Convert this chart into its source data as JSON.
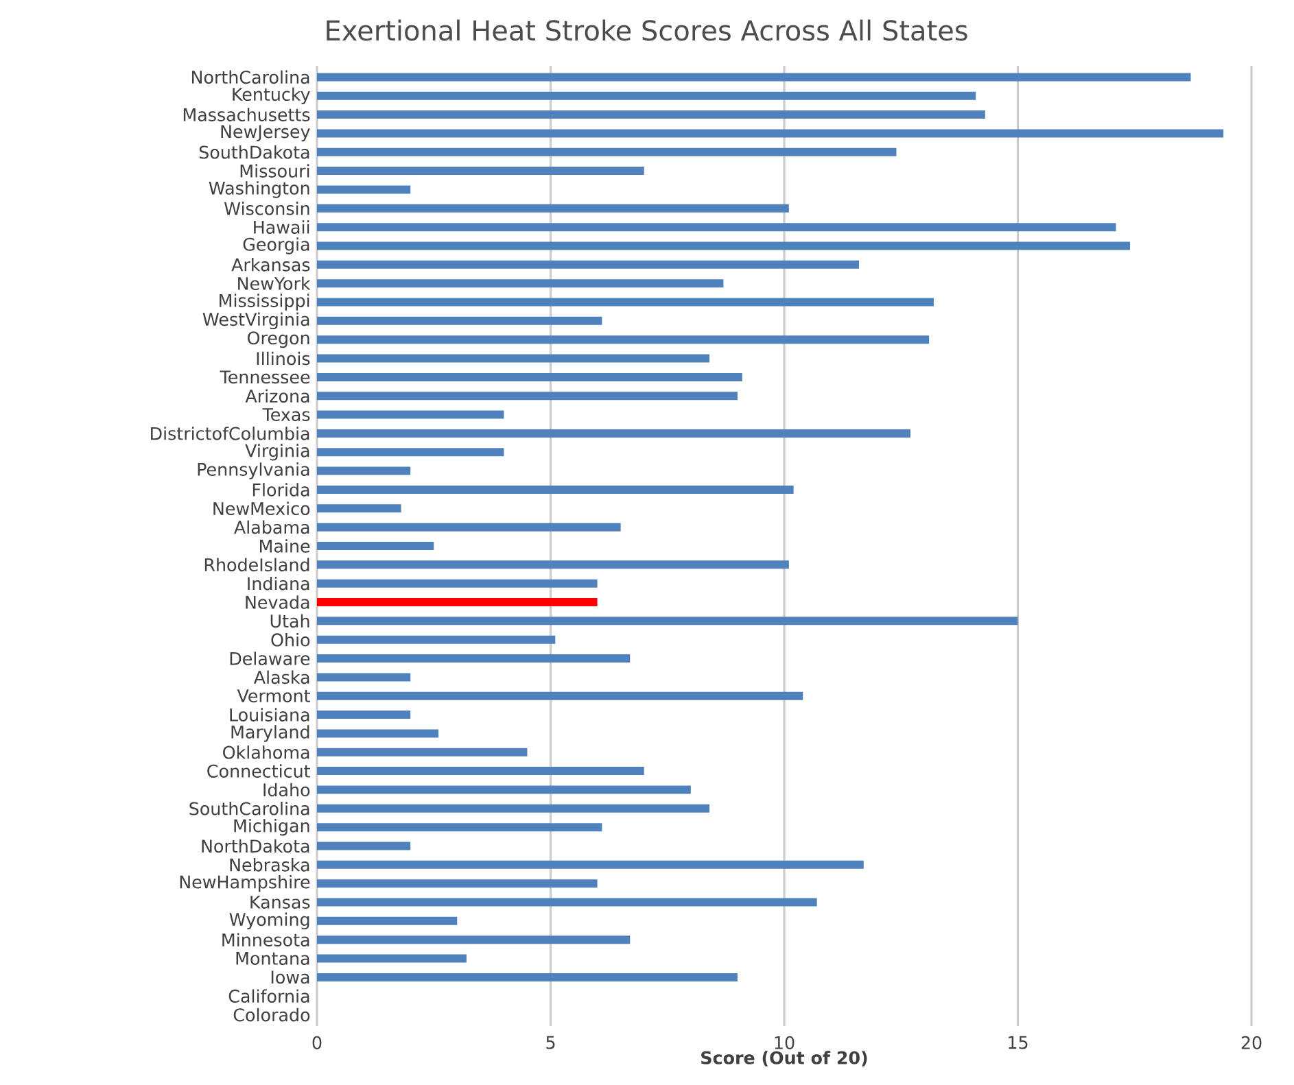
{
  "chart_data": {
    "type": "bar",
    "orientation": "horizontal",
    "title": "Exertional Heat Stroke Scores Across All States",
    "xlabel": "Score (Out of 20)",
    "categories": [
      "NorthCarolina",
      "Kentucky",
      "Massachusetts",
      "NewJersey",
      "SouthDakota",
      "Missouri",
      "Washington",
      "Wisconsin",
      "Hawaii",
      "Georgia",
      "Arkansas",
      "NewYork",
      "Mississippi",
      "WestVirginia",
      "Oregon",
      "Illinois",
      "Tennessee",
      "Arizona",
      "Texas",
      "DistrictofColumbia",
      "Virginia",
      "Pennsylvania",
      "Florida",
      "NewMexico",
      "Alabama",
      "Maine",
      "RhodeIsland",
      "Indiana",
      "Nevada",
      "Utah",
      "Ohio",
      "Delaware",
      "Alaska",
      "Vermont",
      "Louisiana",
      "Maryland",
      "Oklahoma",
      "Connecticut",
      "Idaho",
      "SouthCarolina",
      "Michigan",
      "NorthDakota",
      "Nebraska",
      "NewHampshire",
      "Kansas",
      "Wyoming",
      "Minnesota",
      "Montana",
      "Iowa",
      "California",
      "Colorado"
    ],
    "values": [
      18.7,
      14.1,
      14.3,
      19.4,
      12.4,
      7.0,
      2.0,
      10.1,
      17.1,
      17.4,
      11.6,
      8.7,
      13.2,
      6.1,
      13.1,
      8.4,
      9.1,
      9.0,
      4.0,
      12.7,
      4.0,
      2.0,
      10.2,
      1.8,
      6.5,
      2.5,
      10.1,
      6.0,
      6.0,
      15.0,
      5.1,
      6.7,
      2.0,
      10.4,
      2.0,
      2.6,
      4.5,
      7.0,
      8.0,
      8.4,
      6.1,
      2.0,
      11.7,
      6.0,
      10.7,
      3.0,
      6.7,
      3.2,
      9.0,
      0,
      0
    ],
    "colors": [
      "#4f81bd",
      "#4f81bd",
      "#4f81bd",
      "#4f81bd",
      "#4f81bd",
      "#4f81bd",
      "#4f81bd",
      "#4f81bd",
      "#4f81bd",
      "#4f81bd",
      "#4f81bd",
      "#4f81bd",
      "#4f81bd",
      "#4f81bd",
      "#4f81bd",
      "#4f81bd",
      "#4f81bd",
      "#4f81bd",
      "#4f81bd",
      "#4f81bd",
      "#4f81bd",
      "#4f81bd",
      "#4f81bd",
      "#4f81bd",
      "#4f81bd",
      "#4f81bd",
      "#4f81bd",
      "#4f81bd",
      "#ff0000",
      "#4f81bd",
      "#4f81bd",
      "#4f81bd",
      "#4f81bd",
      "#4f81bd",
      "#4f81bd",
      "#4f81bd",
      "#4f81bd",
      "#4f81bd",
      "#4f81bd",
      "#4f81bd",
      "#4f81bd",
      "#4f81bd",
      "#4f81bd",
      "#4f81bd",
      "#4f81bd",
      "#4f81bd",
      "#4f81bd",
      "#4f81bd",
      "#4f81bd",
      "#4f81bd",
      "#4f81bd"
    ],
    "xlim": [
      0,
      20
    ],
    "xticks": [
      0,
      5,
      10,
      15,
      20
    ],
    "grid": "x"
  }
}
